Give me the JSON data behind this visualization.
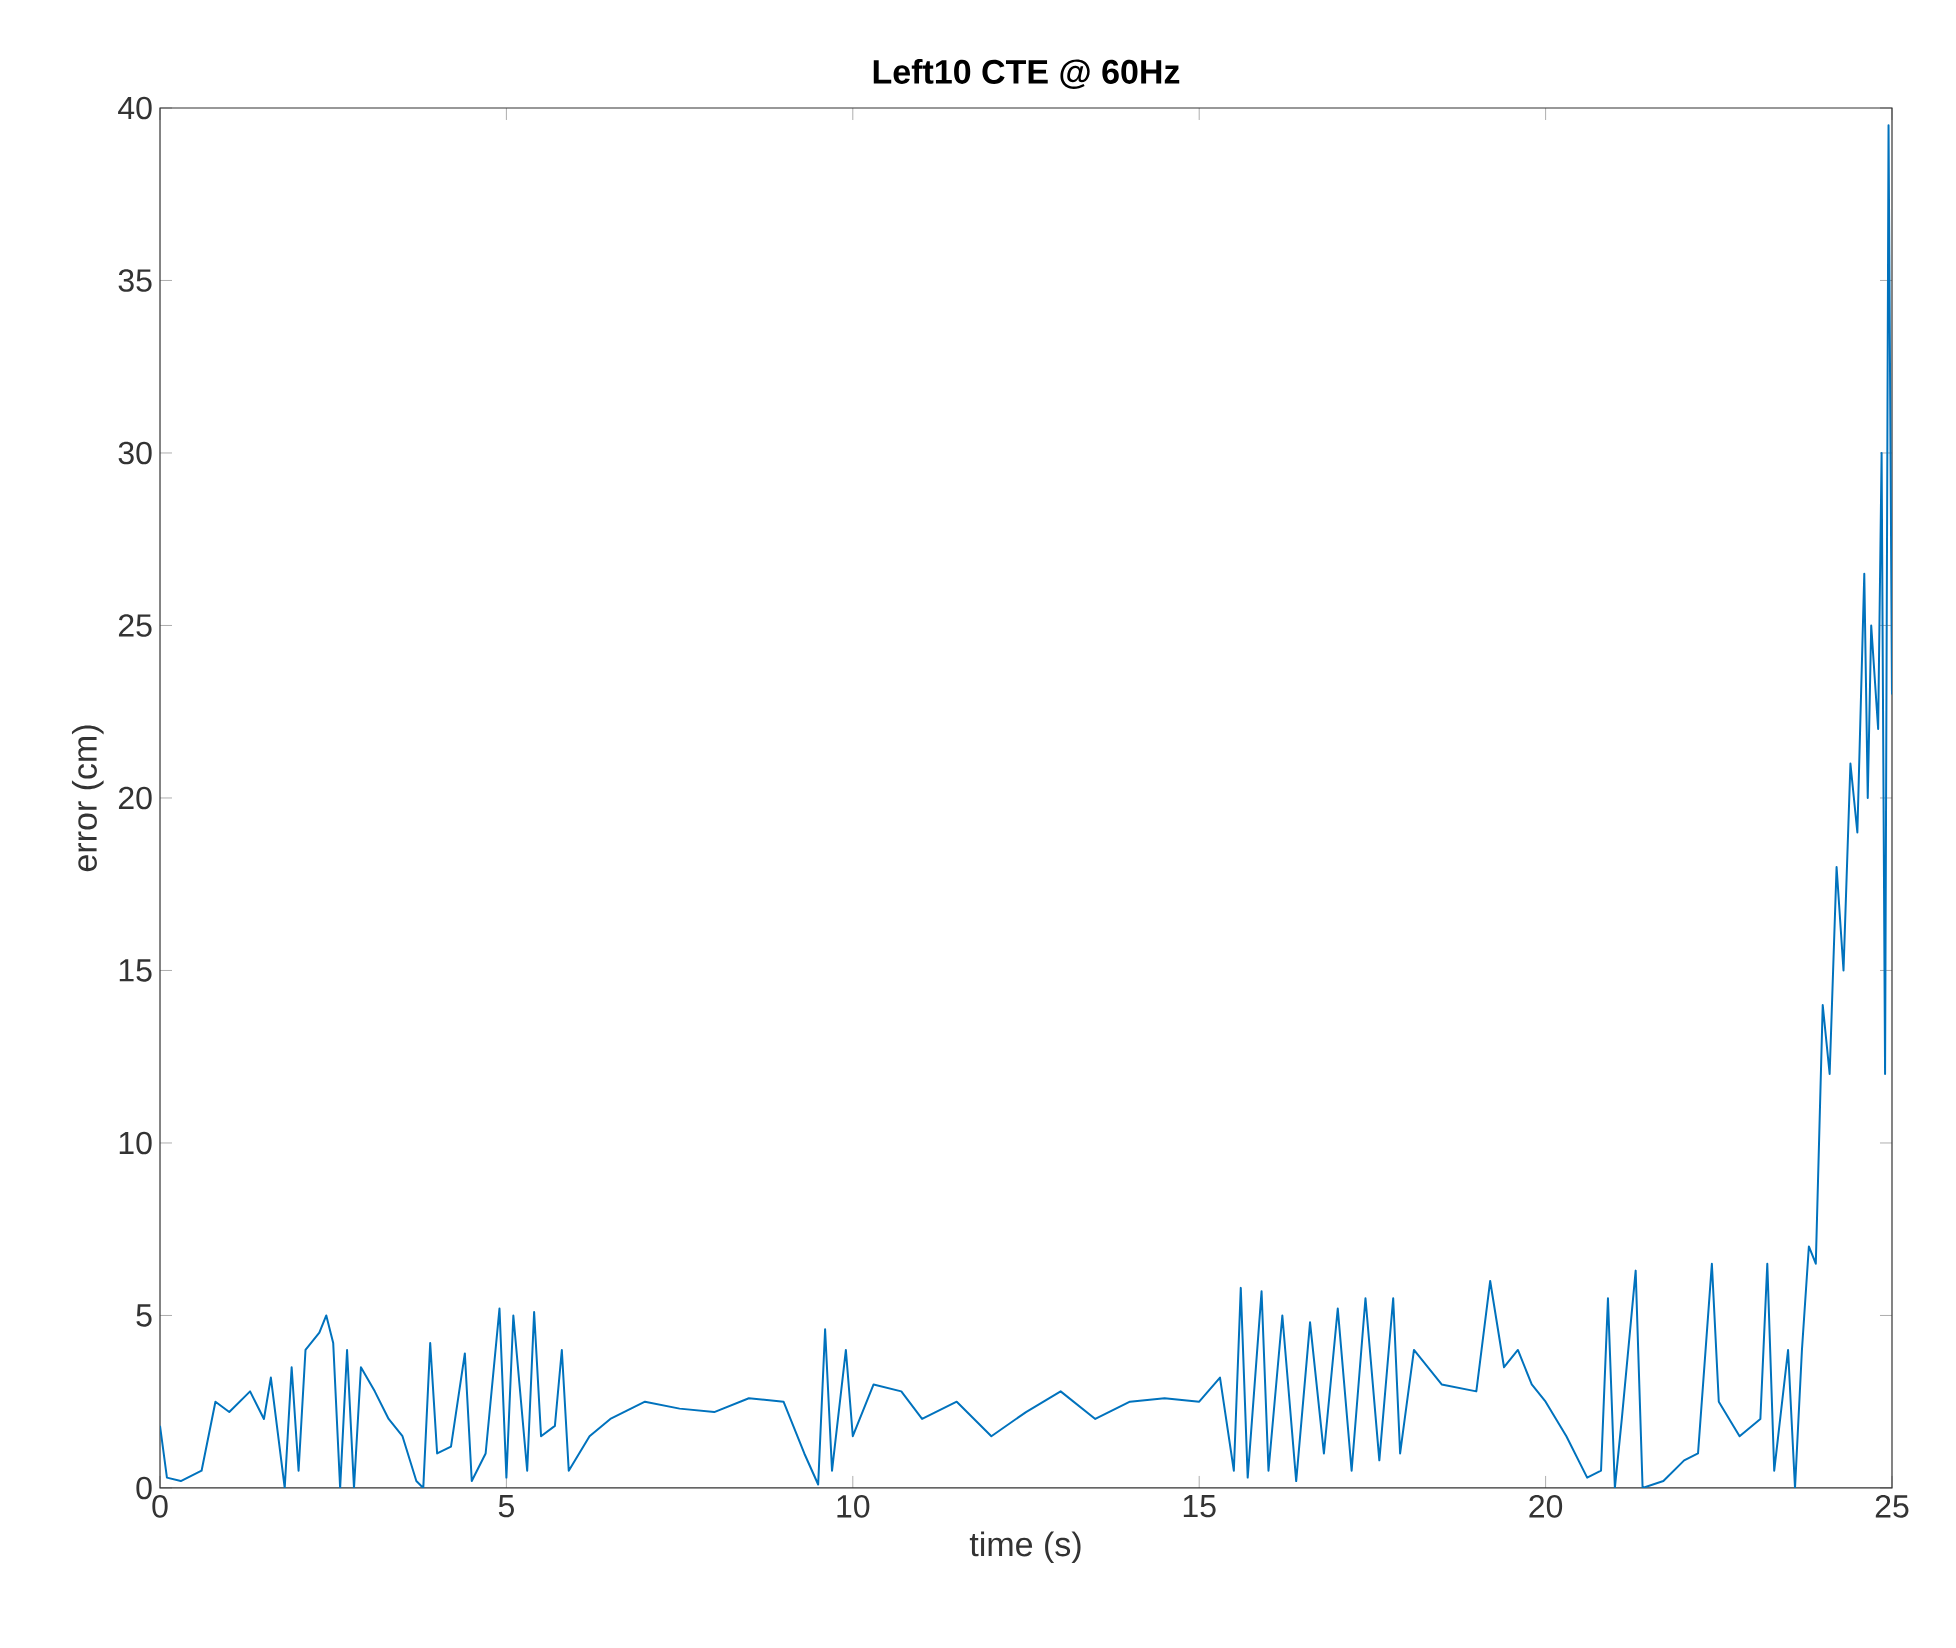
{
  "chart_data": {
    "type": "line",
    "title": "Left10 CTE @ 60Hz",
    "xlabel": "time (s)",
    "ylabel": "error (cm)",
    "xlim": [
      0,
      25
    ],
    "ylim": [
      0,
      40
    ],
    "xticks": [
      0,
      5,
      10,
      15,
      20,
      25
    ],
    "yticks": [
      0,
      5,
      10,
      15,
      20,
      25,
      30,
      35,
      40
    ],
    "series": [
      {
        "color": "#0072bd",
        "x": [
          0,
          0.1,
          0.3,
          0.6,
          0.8,
          1.0,
          1.3,
          1.5,
          1.6,
          1.8,
          1.9,
          2.0,
          2.1,
          2.3,
          2.4,
          2.5,
          2.6,
          2.7,
          2.8,
          2.9,
          3.1,
          3.3,
          3.5,
          3.7,
          3.8,
          3.9,
          4.0,
          4.2,
          4.4,
          4.5,
          4.7,
          4.9,
          5.0,
          5.1,
          5.3,
          5.4,
          5.5,
          5.7,
          5.8,
          5.9,
          6.2,
          6.5,
          7.0,
          7.5,
          8.0,
          8.5,
          9.0,
          9.3,
          9.5,
          9.6,
          9.7,
          9.9,
          10.0,
          10.3,
          10.7,
          11.0,
          11.5,
          12.0,
          12.5,
          13.0,
          13.5,
          14.0,
          14.5,
          15.0,
          15.3,
          15.5,
          15.6,
          15.7,
          15.9,
          16.0,
          16.2,
          16.4,
          16.6,
          16.8,
          17.0,
          17.2,
          17.4,
          17.6,
          17.8,
          17.9,
          18.1,
          18.5,
          19.0,
          19.2,
          19.4,
          19.6,
          19.8,
          20.0,
          20.3,
          20.6,
          20.8,
          20.9,
          21.0,
          21.1,
          21.3,
          21.4,
          21.7,
          22.0,
          22.2,
          22.4,
          22.5,
          22.8,
          23.1,
          23.2,
          23.3,
          23.5,
          23.6,
          23.7,
          23.8,
          23.9,
          24.0,
          24.1,
          24.2,
          24.3,
          24.4,
          24.5,
          24.6,
          24.65,
          24.7,
          24.8,
          24.85,
          24.9,
          24.95,
          25.0
        ],
        "values": [
          1.8,
          0.3,
          0.2,
          0.5,
          2.5,
          2.2,
          2.8,
          2.0,
          3.2,
          0,
          3.5,
          0.5,
          4.0,
          4.5,
          5.0,
          4.2,
          0,
          4.0,
          0,
          3.5,
          2.8,
          2.0,
          1.5,
          0.2,
          0,
          4.2,
          1.0,
          1.2,
          3.9,
          0.2,
          1.0,
          5.2,
          0.3,
          5.0,
          0.5,
          5.1,
          1.5,
          1.8,
          4.0,
          0.5,
          1.5,
          2.0,
          2.5,
          2.3,
          2.2,
          2.6,
          2.5,
          1.0,
          0.1,
          4.6,
          0.5,
          4.0,
          1.5,
          3.0,
          2.8,
          2.0,
          2.5,
          1.5,
          2.2,
          2.8,
          2.0,
          2.5,
          2.6,
          2.5,
          3.2,
          0.5,
          5.8,
          0.3,
          5.7,
          0.5,
          5.0,
          0.2,
          4.8,
          1.0,
          5.2,
          0.5,
          5.5,
          0.8,
          5.5,
          1.0,
          4.0,
          3.0,
          2.8,
          6.0,
          3.5,
          4.0,
          3.0,
          2.5,
          1.5,
          0.3,
          0.5,
          5.5,
          0,
          2.0,
          6.3,
          0,
          0.2,
          0.8,
          1.0,
          6.5,
          2.5,
          1.5,
          2.0,
          6.5,
          0.5,
          4.0,
          0,
          4.0,
          7.0,
          6.5,
          14,
          12,
          18,
          15,
          21,
          19,
          26.5,
          20,
          25,
          22,
          30,
          12,
          39.5,
          23
        ]
      }
    ]
  }
}
